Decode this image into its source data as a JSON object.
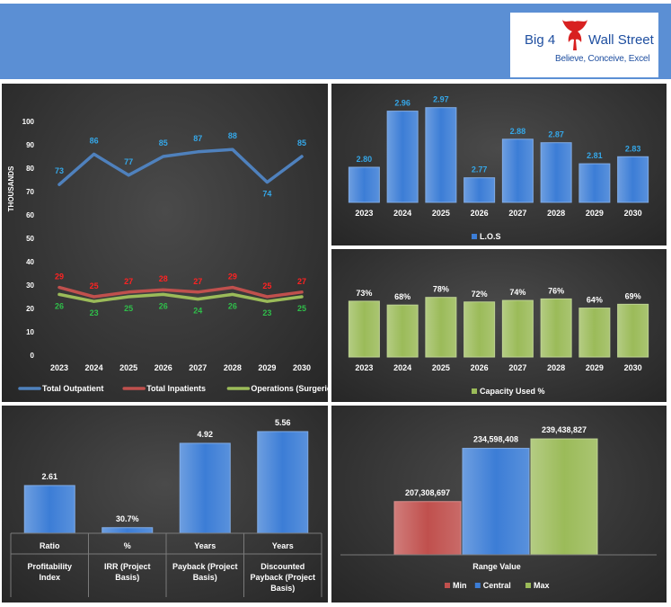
{
  "logo": {
    "word1": "Big 4",
    "word2": "Wall Street",
    "tagline": "Believe, Conceive, Excel"
  },
  "colors": {
    "blue": "#3c7dd6",
    "red": "#c0504d",
    "green": "#9bbb59",
    "outpatient_label": "#35a7e8",
    "inpatient_label": "#ff2222",
    "surgery_label": "#2fbf4a"
  },
  "chart_data": [
    {
      "id": "volumes",
      "type": "line",
      "x": [
        "2023",
        "2024",
        "2025",
        "2026",
        "2027",
        "2028",
        "2029",
        "2030"
      ],
      "ylabel": "THOUSANDS",
      "ylim": [
        0,
        100
      ],
      "yticks": [
        0,
        10,
        20,
        30,
        40,
        50,
        60,
        70,
        80,
        90,
        100
      ],
      "legend_position": "bottom",
      "series": [
        {
          "name": "Total Outpatient",
          "color": "#4f81bd",
          "label_color": "#35a7e8",
          "values": [
            73,
            86,
            77,
            85,
            87,
            88,
            74,
            85
          ]
        },
        {
          "name": "Total Inpatients",
          "color": "#c0504d",
          "label_color": "#ff2222",
          "values": [
            29,
            25,
            27,
            28,
            27,
            29,
            25,
            27
          ]
        },
        {
          "name": "Operations (Surgeries)",
          "color": "#9bbb59",
          "label_color": "#2fbf4a",
          "values": [
            26,
            23,
            25,
            26,
            24,
            26,
            23,
            25
          ]
        }
      ]
    },
    {
      "id": "los",
      "type": "bar",
      "categories": [
        "2023",
        "2024",
        "2025",
        "2026",
        "2027",
        "2028",
        "2029",
        "2030"
      ],
      "series": [
        {
          "name": "L.O.S",
          "values": [
            2.8,
            2.96,
            2.97,
            2.77,
            2.88,
            2.87,
            2.81,
            2.83
          ]
        }
      ],
      "value_labels": [
        "2.80",
        "2.96",
        "2.97",
        "2.77",
        "2.88",
        "2.87",
        "2.81",
        "2.83"
      ],
      "ylim": [
        2.7,
        3.0
      ],
      "legend_position": "bottom"
    },
    {
      "id": "capacity",
      "type": "bar",
      "categories": [
        "2023",
        "2024",
        "2025",
        "2026",
        "2027",
        "2028",
        "2029",
        "2030"
      ],
      "series": [
        {
          "name": "Capacity Used %",
          "values": [
            73,
            68,
            78,
            72,
            74,
            76,
            64,
            69
          ]
        }
      ],
      "value_labels": [
        "73%",
        "68%",
        "78%",
        "72%",
        "74%",
        "76%",
        "64%",
        "69%"
      ],
      "ylim": [
        0,
        100
      ],
      "legend_position": "bottom"
    },
    {
      "id": "returns",
      "type": "bar",
      "categories": [
        {
          "unit": "Ratio",
          "name": "Profitability Index"
        },
        {
          "unit": "%",
          "name": "IRR (Project Basis)"
        },
        {
          "unit": "Years",
          "name": "Payback  (Project Basis)"
        },
        {
          "unit": "Years",
          "name": "Discounted Payback  (Project Basis)"
        }
      ],
      "values": [
        2.61,
        0.307,
        4.92,
        5.56
      ],
      "value_labels": [
        "2.61",
        "30.7%",
        "4.92",
        "5.56"
      ],
      "ylim": [
        0,
        6
      ]
    },
    {
      "id": "range",
      "type": "bar",
      "xlabel": "Range Value",
      "categories": [
        "Min",
        "Central",
        "Max"
      ],
      "values": [
        207308697,
        234598408,
        239438827
      ],
      "value_labels": [
        "207,308,697",
        "234,598,408",
        "239,438,827"
      ],
      "colors": [
        "#c0504d",
        "#3c7dd6",
        "#9bbb59"
      ],
      "ylim": [
        180000000,
        245000000
      ],
      "legend_position": "bottom"
    }
  ]
}
